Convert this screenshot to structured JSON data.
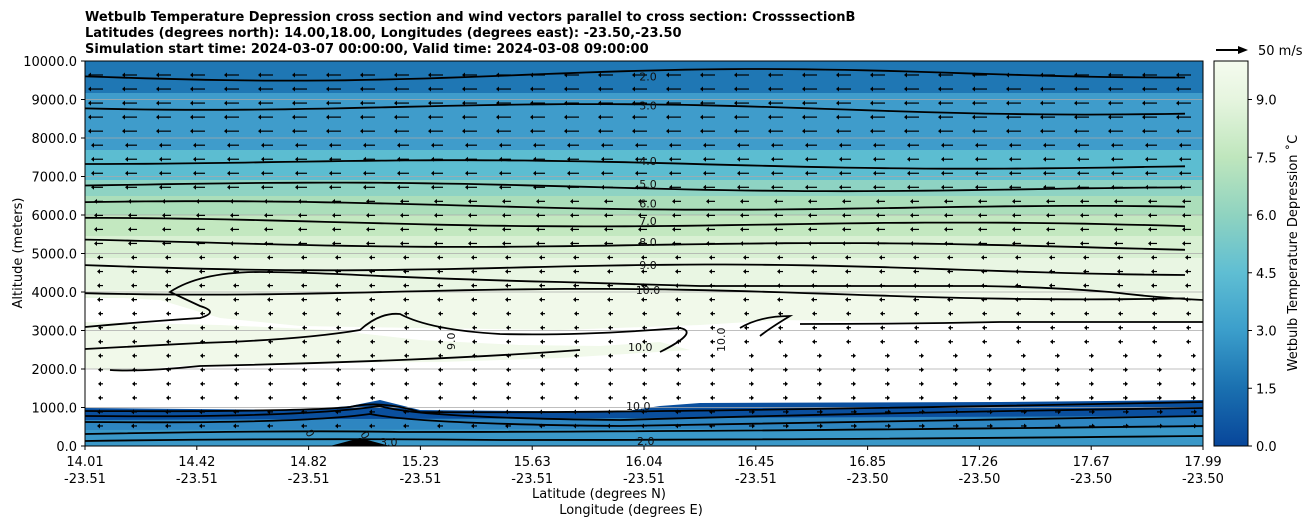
{
  "chart_data": {
    "type": "contour",
    "title_lines": [
      "Wetbulb Temperature Depression cross section and wind vectors parallel to cross section: CrosssectionB",
      "Latitudes (degrees north): 14.00,18.00, Longitudes (degrees east): -23.50,-23.50",
      "Simulation start time: 2024-03-07 00:00:00, Valid time: 2024-03-08 09:00:00"
    ],
    "xlabel": "Latitude (degrees N)",
    "xlabel2": "Longitude (degrees E)",
    "ylabel": "Altitude (meters)",
    "x_ticks_lat": [
      "14.01",
      "14.42",
      "14.82",
      "15.23",
      "15.63",
      "16.04",
      "16.45",
      "16.85",
      "17.26",
      "17.67",
      "17.99"
    ],
    "x_ticks_lon": [
      "-23.51",
      "-23.51",
      "-23.51",
      "-23.51",
      "-23.51",
      "-23.51",
      "-23.51",
      "-23.50",
      "-23.50",
      "-23.50",
      "-23.50"
    ],
    "y_ticks": [
      "0.0",
      "1000.0",
      "2000.0",
      "3000.0",
      "4000.0",
      "5000.0",
      "6000.0",
      "7000.0",
      "8000.0",
      "9000.0",
      "10000.0"
    ],
    "ylim": [
      0,
      10000
    ],
    "grid": "horizontal",
    "colorbar": {
      "label": "Wetbulb Temperature Depression ˚C",
      "ticks": [
        "0.0",
        "1.5",
        "3.0",
        "4.5",
        "6.0",
        "7.5",
        "9.0"
      ],
      "range": [
        0,
        10
      ],
      "colormap": "GnBu_r"
    },
    "wind_key": {
      "label": "50 m/s"
    },
    "contour_lines": [
      {
        "label": "2.0",
        "altitude": 9600
      },
      {
        "label": "3.0",
        "altitude": 8850
      },
      {
        "label": "4.0",
        "altitude": 7400
      },
      {
        "label": "5.0",
        "altitude": 6800
      },
      {
        "label": "6.0",
        "altitude": 6300
      },
      {
        "label": "7.0",
        "altitude": 5850
      },
      {
        "label": "8.0",
        "altitude": 5300
      },
      {
        "label": "9.0",
        "altitude": 4700
      },
      {
        "label": "10.0",
        "altitude": 4050
      }
    ],
    "extra_labels": [
      "10.0",
      "9.0",
      "10.0",
      "10.0",
      "2.0",
      "3.0",
      "0",
      "0"
    ]
  }
}
